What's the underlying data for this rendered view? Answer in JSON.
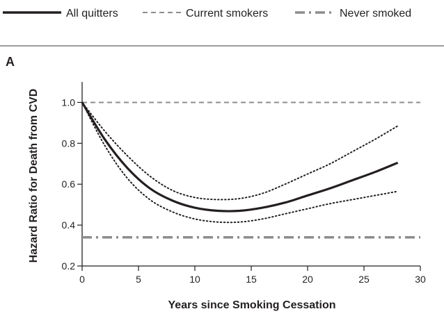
{
  "legend": [
    {
      "label": "All quitters",
      "style": "solid",
      "color": "#231f20"
    },
    {
      "label": "Current smokers",
      "style": "dashed",
      "color": "#8c8c8c"
    },
    {
      "label": "Never smoked",
      "style": "dash-dot",
      "color": "#8c8c8c"
    }
  ],
  "panel_label": "A",
  "chart_data": {
    "type": "line",
    "title": "",
    "xlabel": "Years since Smoking Cessation",
    "ylabel": "Hazard Ratio for Death from CVD",
    "xlim": [
      0,
      30
    ],
    "ylim": [
      0.2,
      1.1
    ],
    "x_ticks": [
      0,
      5,
      10,
      15,
      20,
      25,
      30
    ],
    "y_ticks": [
      0.2,
      0.4,
      0.6,
      0.8,
      1.0
    ],
    "x_tick_labels": [
      "0",
      "5",
      "10",
      "15",
      "20",
      "25",
      "30"
    ],
    "y_tick_labels": [
      "0.2",
      "0.4",
      "0.6",
      "0.8",
      "1.0"
    ],
    "grid": false,
    "series": [
      {
        "name": "All quitters",
        "style": "solid",
        "x": [
          0,
          2,
          4,
          6,
          8,
          10,
          12,
          14,
          16,
          18,
          20,
          22,
          24,
          26,
          28
        ],
        "y": [
          1.0,
          0.82,
          0.68,
          0.58,
          0.52,
          0.485,
          0.47,
          0.47,
          0.485,
          0.51,
          0.545,
          0.58,
          0.62,
          0.66,
          0.705
        ]
      },
      {
        "name": "Current smokers",
        "style": "dashed",
        "x": [
          0,
          30
        ],
        "y": [
          1.0,
          1.0
        ]
      },
      {
        "name": "Never smoked",
        "style": "dash-dot",
        "x": [
          0,
          30
        ],
        "y": [
          0.34,
          0.34
        ]
      },
      {
        "style": "dotted",
        "x": [
          0,
          2,
          4,
          6,
          8,
          10,
          12,
          14,
          16,
          18,
          20,
          22,
          24,
          26,
          28
        ],
        "y": [
          1.0,
          0.86,
          0.74,
          0.64,
          0.57,
          0.535,
          0.525,
          0.53,
          0.555,
          0.6,
          0.65,
          0.7,
          0.76,
          0.82,
          0.885
        ]
      },
      {
        "style": "dotted",
        "x": [
          0,
          2,
          4,
          6,
          8,
          10,
          12,
          14,
          16,
          18,
          20,
          22,
          24,
          26,
          28
        ],
        "y": [
          1.0,
          0.79,
          0.63,
          0.525,
          0.465,
          0.43,
          0.415,
          0.415,
          0.43,
          0.455,
          0.48,
          0.505,
          0.525,
          0.545,
          0.565
        ]
      }
    ]
  }
}
